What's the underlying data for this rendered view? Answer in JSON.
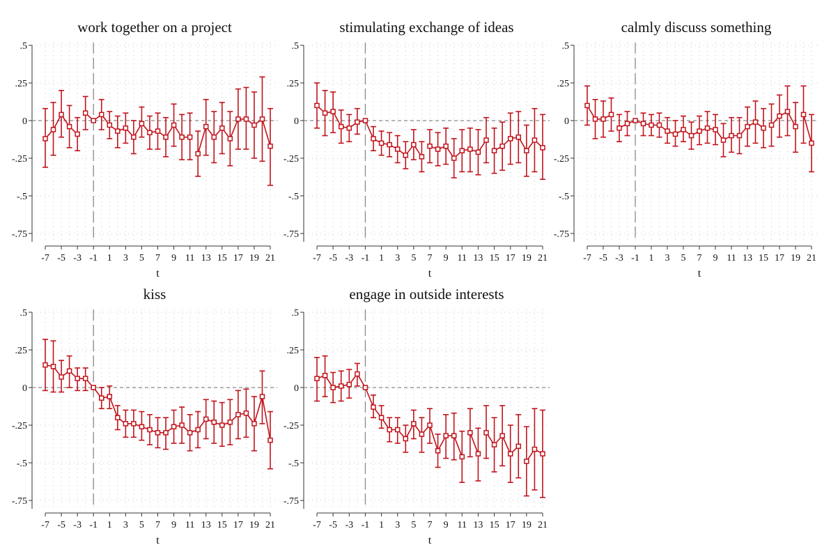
{
  "style": {
    "series_color": "#c0121a",
    "grid_color": "#c9c9c9",
    "axis_color": "#333333",
    "refline_color": "#888888"
  },
  "chart_data": [
    {
      "type": "line",
      "title": "work together on a project",
      "xlabel": "t",
      "ylabel": "",
      "x": [
        -7,
        -6,
        -5,
        -4,
        -3,
        -2,
        -1,
        0,
        1,
        2,
        3,
        4,
        5,
        6,
        7,
        8,
        9,
        10,
        11,
        12,
        13,
        14,
        15,
        16,
        17,
        18,
        19,
        20,
        21
      ],
      "y": [
        -0.12,
        -0.06,
        0.04,
        -0.04,
        -0.09,
        0.05,
        0.0,
        0.04,
        -0.03,
        -0.07,
        -0.05,
        -0.11,
        -0.02,
        -0.08,
        -0.07,
        -0.11,
        -0.03,
        -0.11,
        -0.11,
        -0.22,
        -0.04,
        -0.11,
        -0.05,
        -0.12,
        0.01,
        0.01,
        -0.03,
        0.01,
        -0.17
      ],
      "ci_low": [
        -0.31,
        -0.23,
        -0.11,
        -0.18,
        -0.2,
        -0.06,
        0.0,
        -0.06,
        -0.12,
        -0.18,
        -0.15,
        -0.22,
        -0.11,
        -0.19,
        -0.19,
        -0.24,
        -0.17,
        -0.26,
        -0.26,
        -0.37,
        -0.23,
        -0.28,
        -0.22,
        -0.3,
        -0.19,
        -0.19,
        -0.25,
        -0.27,
        -0.43
      ],
      "ci_high": [
        0.08,
        0.12,
        0.2,
        0.1,
        0.02,
        0.16,
        0.0,
        0.14,
        0.06,
        0.03,
        0.05,
        0.0,
        0.09,
        0.03,
        0.05,
        0.02,
        0.11,
        0.04,
        0.05,
        -0.07,
        0.14,
        0.06,
        0.12,
        0.06,
        0.21,
        0.22,
        0.19,
        0.29,
        0.08
      ],
      "breaks": [
        [
          -3,
          -2
        ],
        [
          11,
          12
        ]
      ],
      "xticks": [
        -7,
        -5,
        -3,
        -1,
        1,
        3,
        5,
        7,
        9,
        11,
        13,
        15,
        17,
        19,
        21
      ],
      "xtick_labels": [
        "-7",
        "-5",
        "-3",
        "-1",
        "1",
        "3",
        "5",
        "7",
        "9",
        "11",
        "13",
        "15",
        "17",
        "19",
        "21"
      ],
      "yticks": [
        0.5,
        0.25,
        0,
        -0.25,
        -0.5,
        -0.75
      ],
      "ytick_labels": [
        ".5",
        ".25",
        "0",
        "-.25",
        "-.5",
        "-.75"
      ],
      "xlim": [
        -7.5,
        21.5
      ],
      "ylim": [
        -0.78,
        0.5
      ],
      "event_time": -1,
      "grid": true,
      "legend": "none"
    },
    {
      "type": "line",
      "title": "stimulating exchange of ideas",
      "xlabel": "t",
      "ylabel": "",
      "x": [
        -7,
        -6,
        -5,
        -4,
        -3,
        -2,
        -1,
        0,
        1,
        2,
        3,
        4,
        5,
        6,
        7,
        8,
        9,
        10,
        11,
        12,
        13,
        14,
        15,
        16,
        17,
        18,
        19,
        20,
        21
      ],
      "y": [
        0.1,
        0.05,
        0.06,
        -0.04,
        -0.05,
        -0.01,
        0.0,
        -0.12,
        -0.15,
        -0.16,
        -0.19,
        -0.23,
        -0.16,
        -0.24,
        -0.17,
        -0.19,
        -0.17,
        -0.25,
        -0.2,
        -0.19,
        -0.21,
        -0.13,
        -0.2,
        -0.17,
        -0.12,
        -0.11,
        -0.2,
        -0.13,
        -0.18
      ],
      "ci_low": [
        -0.05,
        -0.1,
        -0.08,
        -0.15,
        -0.14,
        -0.09,
        0.0,
        -0.2,
        -0.23,
        -0.24,
        -0.28,
        -0.32,
        -0.26,
        -0.34,
        -0.28,
        -0.3,
        -0.29,
        -0.38,
        -0.34,
        -0.34,
        -0.36,
        -0.28,
        -0.35,
        -0.33,
        -0.29,
        -0.28,
        -0.37,
        -0.34,
        -0.39
      ],
      "ci_high": [
        0.25,
        0.2,
        0.19,
        0.07,
        0.04,
        0.08,
        0.0,
        -0.04,
        -0.07,
        -0.08,
        -0.1,
        -0.14,
        -0.06,
        -0.14,
        -0.06,
        -0.08,
        -0.05,
        -0.12,
        -0.06,
        -0.05,
        -0.06,
        0.02,
        -0.05,
        -0.01,
        0.05,
        0.06,
        -0.03,
        0.08,
        0.04
      ],
      "breaks": [
        [
          6,
          7
        ],
        [
          14,
          15
        ]
      ],
      "xticks": [
        -7,
        -5,
        -3,
        -1,
        1,
        3,
        5,
        7,
        9,
        11,
        13,
        15,
        17,
        19,
        21
      ],
      "xtick_labels": [
        "-7",
        "-5",
        "-3",
        "-1",
        "1",
        "3",
        "5",
        "7",
        "9",
        "11",
        "13",
        "15",
        "17",
        "19",
        "21"
      ],
      "yticks": [
        0.5,
        0.25,
        0,
        -0.25,
        -0.5,
        -0.75
      ],
      "ytick_labels": [
        ".5",
        ".25",
        "0",
        "-.25",
        "-.5",
        "-.75"
      ],
      "xlim": [
        -7.5,
        21.5
      ],
      "ylim": [
        -0.78,
        0.5
      ],
      "event_time": -1,
      "grid": true,
      "legend": "none"
    },
    {
      "type": "line",
      "title": "calmly discuss something",
      "xlabel": "t",
      "ylabel": "",
      "x": [
        -7,
        -6,
        -5,
        -4,
        -3,
        -2,
        -1,
        0,
        1,
        2,
        3,
        4,
        5,
        6,
        7,
        8,
        9,
        10,
        11,
        12,
        13,
        14,
        15,
        16,
        17,
        18,
        19,
        20,
        21
      ],
      "y": [
        0.1,
        0.01,
        0.01,
        0.04,
        -0.05,
        -0.02,
        0.0,
        -0.02,
        -0.03,
        -0.03,
        -0.07,
        -0.09,
        -0.06,
        -0.1,
        -0.07,
        -0.05,
        -0.06,
        -0.13,
        -0.1,
        -0.1,
        -0.04,
        -0.01,
        -0.05,
        -0.03,
        0.03,
        0.06,
        -0.04,
        0.04,
        -0.15
      ],
      "ci_low": [
        -0.03,
        -0.12,
        -0.11,
        -0.07,
        -0.14,
        -0.1,
        0.0,
        -0.1,
        -0.1,
        -0.11,
        -0.15,
        -0.17,
        -0.14,
        -0.19,
        -0.16,
        -0.15,
        -0.16,
        -0.24,
        -0.21,
        -0.22,
        -0.17,
        -0.15,
        -0.18,
        -0.17,
        -0.11,
        -0.1,
        -0.21,
        -0.15,
        -0.34
      ],
      "ci_high": [
        0.23,
        0.14,
        0.13,
        0.15,
        0.04,
        0.06,
        0.0,
        0.05,
        0.04,
        0.05,
        0.02,
        0.0,
        0.03,
        -0.01,
        0.03,
        0.06,
        0.04,
        -0.02,
        0.02,
        0.02,
        0.09,
        0.13,
        0.08,
        0.11,
        0.17,
        0.23,
        0.12,
        0.23,
        0.04
      ],
      "breaks": [
        [
          -4,
          -3
        ],
        [
          15,
          16
        ],
        [
          19,
          20
        ]
      ],
      "xticks": [
        -7,
        -5,
        -3,
        -1,
        1,
        3,
        5,
        7,
        9,
        11,
        13,
        15,
        17,
        19,
        21
      ],
      "xtick_labels": [
        "-7",
        "-5",
        "-3",
        "-1",
        "1",
        "3",
        "5",
        "7",
        "9",
        "11",
        "13",
        "15",
        "17",
        "19",
        "21"
      ],
      "yticks": [
        0.5,
        0.25,
        0,
        -0.25,
        -0.5,
        -0.75
      ],
      "ytick_labels": [
        ".5",
        ".25",
        "0",
        "-.25",
        "-.5",
        "-.75"
      ],
      "xlim": [
        -7.5,
        21.5
      ],
      "ylim": [
        -0.78,
        0.5
      ],
      "event_time": -1,
      "grid": true,
      "legend": "none"
    },
    {
      "type": "line",
      "title": "kiss",
      "xlabel": "t",
      "ylabel": "",
      "x": [
        -7,
        -6,
        -5,
        -4,
        -3,
        -2,
        -1,
        0,
        1,
        2,
        3,
        4,
        5,
        6,
        7,
        8,
        9,
        10,
        11,
        12,
        13,
        14,
        15,
        16,
        17,
        18,
        19,
        20,
        21
      ],
      "y": [
        0.15,
        0.14,
        0.07,
        0.11,
        0.06,
        0.06,
        0.0,
        -0.07,
        -0.06,
        -0.2,
        -0.24,
        -0.24,
        -0.26,
        -0.28,
        -0.3,
        -0.3,
        -0.26,
        -0.25,
        -0.3,
        -0.28,
        -0.21,
        -0.23,
        -0.25,
        -0.23,
        -0.18,
        -0.17,
        -0.24,
        -0.06,
        -0.35
      ],
      "ci_low": [
        -0.02,
        -0.03,
        -0.03,
        0.0,
        -0.02,
        -0.02,
        0.0,
        -0.14,
        -0.14,
        -0.28,
        -0.33,
        -0.33,
        -0.35,
        -0.38,
        -0.4,
        -0.41,
        -0.37,
        -0.37,
        -0.42,
        -0.4,
        -0.34,
        -0.37,
        -0.39,
        -0.38,
        -0.34,
        -0.33,
        -0.42,
        -0.24,
        -0.54
      ],
      "ci_high": [
        0.32,
        0.31,
        0.18,
        0.21,
        0.13,
        0.13,
        0.0,
        0.0,
        0.01,
        -0.12,
        -0.15,
        -0.15,
        -0.16,
        -0.18,
        -0.2,
        -0.2,
        -0.15,
        -0.13,
        -0.18,
        -0.16,
        -0.08,
        -0.09,
        -0.1,
        -0.08,
        -0.02,
        -0.01,
        -0.06,
        0.11,
        -0.16
      ],
      "breaks": [],
      "xticks": [
        -7,
        -5,
        -3,
        -1,
        1,
        3,
        5,
        7,
        9,
        11,
        13,
        15,
        17,
        19,
        21
      ],
      "xtick_labels": [
        "-7",
        "-5",
        "-3",
        "-1",
        "1",
        "3",
        "5",
        "7",
        "9",
        "11",
        "13",
        "15",
        "17",
        "19",
        "21"
      ],
      "yticks": [
        0.5,
        0.25,
        0,
        -0.25,
        -0.5,
        -0.75
      ],
      "ytick_labels": [
        ".5",
        ".25",
        "0",
        "-.25",
        "-.5",
        "-.75"
      ],
      "xlim": [
        -7.5,
        21.5
      ],
      "ylim": [
        -0.78,
        0.5
      ],
      "event_time": -1,
      "grid": true,
      "legend": "none"
    },
    {
      "type": "line",
      "title": "engage in outside interests",
      "xlabel": "t",
      "ylabel": "",
      "x": [
        -7,
        -6,
        -5,
        -4,
        -3,
        -2,
        -1,
        0,
        1,
        2,
        3,
        4,
        5,
        6,
        7,
        8,
        9,
        10,
        11,
        12,
        13,
        14,
        15,
        16,
        17,
        18,
        19,
        20,
        21
      ],
      "y": [
        0.06,
        0.08,
        0.0,
        0.01,
        0.02,
        0.09,
        0.0,
        -0.13,
        -0.2,
        -0.28,
        -0.28,
        -0.34,
        -0.24,
        -0.31,
        -0.25,
        -0.42,
        -0.32,
        -0.32,
        -0.46,
        -0.3,
        -0.44,
        -0.3,
        -0.38,
        -0.32,
        -0.44,
        -0.39,
        -0.49,
        -0.41,
        -0.44
      ],
      "ci_low": [
        -0.09,
        -0.06,
        -0.1,
        -0.09,
        -0.07,
        0.01,
        0.0,
        -0.2,
        -0.27,
        -0.36,
        -0.37,
        -0.43,
        -0.34,
        -0.43,
        -0.37,
        -0.53,
        -0.47,
        -0.48,
        -0.63,
        -0.46,
        -0.62,
        -0.47,
        -0.56,
        -0.52,
        -0.63,
        -0.6,
        -0.72,
        -0.68,
        -0.73
      ],
      "ci_high": [
        0.2,
        0.21,
        0.1,
        0.11,
        0.12,
        0.16,
        0.0,
        -0.05,
        -0.12,
        -0.2,
        -0.2,
        -0.25,
        -0.15,
        -0.2,
        -0.14,
        -0.31,
        -0.18,
        -0.17,
        -0.29,
        -0.14,
        -0.27,
        -0.12,
        -0.2,
        -0.12,
        -0.25,
        -0.18,
        -0.26,
        -0.14,
        -0.15
      ],
      "breaks": [
        [
          11,
          12
        ],
        [
          13,
          14
        ],
        [
          18,
          19
        ]
      ],
      "xticks": [
        -7,
        -5,
        -3,
        -1,
        1,
        3,
        5,
        7,
        9,
        11,
        13,
        15,
        17,
        19,
        21
      ],
      "xtick_labels": [
        "-7",
        "-5",
        "-3",
        "-1",
        "1",
        "3",
        "5",
        "7",
        "9",
        "11",
        "13",
        "15",
        "17",
        "19",
        "21"
      ],
      "yticks": [
        0.5,
        0.25,
        0,
        -0.25,
        -0.5,
        -0.75
      ],
      "ytick_labels": [
        ".5",
        ".25",
        "0",
        "-.25",
        "-.5",
        "-.75"
      ],
      "xlim": [
        -7.5,
        21.5
      ],
      "ylim": [
        -0.78,
        0.5
      ],
      "event_time": -1,
      "grid": true,
      "legend": "none"
    }
  ]
}
